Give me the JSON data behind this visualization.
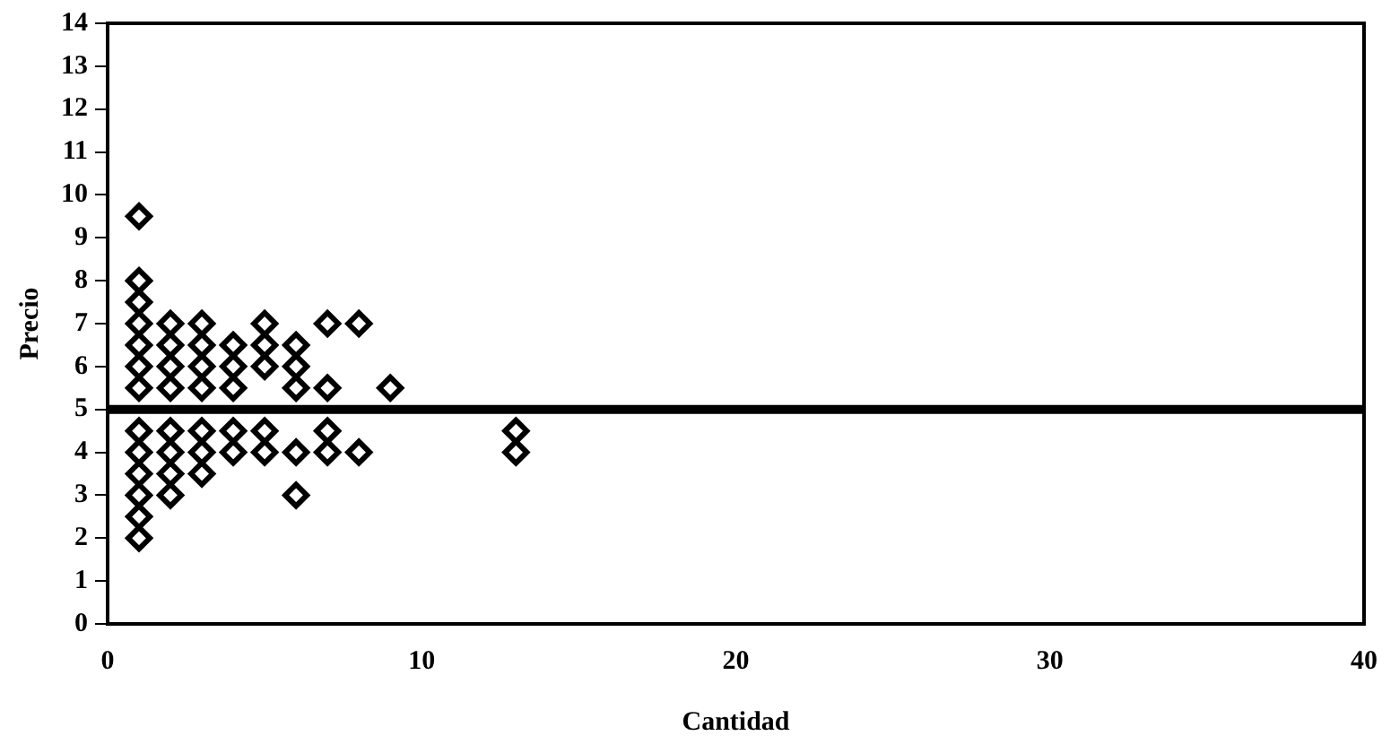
{
  "chart_data": {
    "type": "scatter",
    "xlabel": "Cantidad",
    "ylabel": "Precio",
    "marker": "diamond",
    "grid": false,
    "legend": false,
    "xlim": [
      0,
      40
    ],
    "xticks": [
      0,
      10,
      20,
      30,
      40
    ],
    "ylim": [
      0,
      14
    ],
    "yticks": [
      0,
      1,
      2,
      3,
      4,
      5,
      6,
      7,
      8,
      9,
      10,
      11,
      12,
      13,
      14
    ],
    "ref_lines": [
      {
        "axis": "y",
        "value": 5,
        "color": "#000000"
      }
    ],
    "series": [
      {
        "color": "#000000",
        "x": [
          1,
          1,
          1,
          1,
          1,
          1,
          1,
          1,
          1,
          1,
          1,
          1,
          1,
          2,
          2,
          2,
          2,
          2,
          2,
          2,
          2,
          3,
          3,
          3,
          3,
          3,
          3,
          3,
          4,
          4,
          4,
          4,
          4,
          5,
          5,
          5,
          5,
          5,
          6,
          6,
          6,
          6,
          6,
          7,
          7,
          7,
          7,
          8,
          8,
          9,
          13,
          13
        ],
        "values": [
          2,
          2.5,
          3,
          3.5,
          4,
          4.5,
          5.5,
          6,
          6.5,
          7,
          7.5,
          8,
          9.5,
          3,
          3.5,
          4,
          4.5,
          5.5,
          6,
          6.5,
          7,
          3.5,
          4,
          4.5,
          5.5,
          6,
          6.5,
          7,
          4,
          4.5,
          5.5,
          6,
          6.5,
          4,
          4.5,
          6,
          6.5,
          7,
          3,
          4,
          5.5,
          6,
          6.5,
          4,
          4.5,
          5.5,
          7,
          4,
          7,
          5.5,
          4,
          4.5
        ]
      }
    ]
  }
}
